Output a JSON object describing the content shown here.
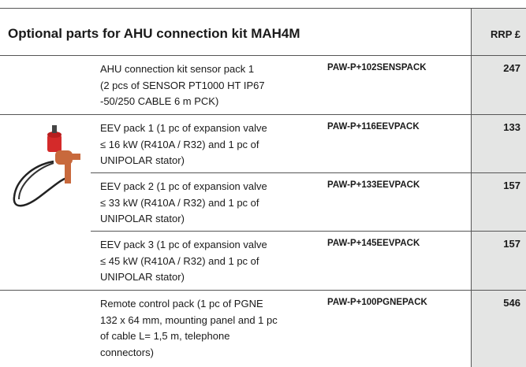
{
  "header": {
    "title": "Optional parts for AHU connection kit MAH4M",
    "price_label": "RRP £"
  },
  "rows": [
    {
      "description": [
        "AHU connection kit sensor pack 1",
        "(2 pcs of SENSOR PT1000 HT IP67",
        "-50/250 CABLE 6 m PCK)"
      ],
      "code": "PAW-P+102SENSPACK",
      "price": "247"
    },
    {
      "description": [
        "EEV pack 1 (1 pc of expansion valve",
        "≤ 16 kW (R410A / R32) and 1 pc of",
        "UNIPOLAR stator)"
      ],
      "code": "PAW-P+116EEVPACK",
      "price": "133"
    },
    {
      "description": [
        "EEV pack 2 (1 pc of expansion valve",
        "≤ 33 kW (R410A / R32) and 1 pc of",
        "UNIPOLAR stator)"
      ],
      "code": "PAW-P+133EEVPACK",
      "price": "157"
    },
    {
      "description": [
        "EEV pack 3 (1 pc of expansion valve",
        "≤ 45 kW (R410A / R32) and 1 pc of",
        "UNIPOLAR stator)"
      ],
      "code": "PAW-P+145EEVPACK",
      "price": "157"
    },
    {
      "description": [
        "Remote control pack (1 pc of PGNE",
        "132 x 64 mm, mounting panel and 1 pc",
        "of cable L= 1,5 m, telephone",
        "connectors)"
      ],
      "code": "PAW-P+100PGNEPACK",
      "price": "546"
    }
  ]
}
